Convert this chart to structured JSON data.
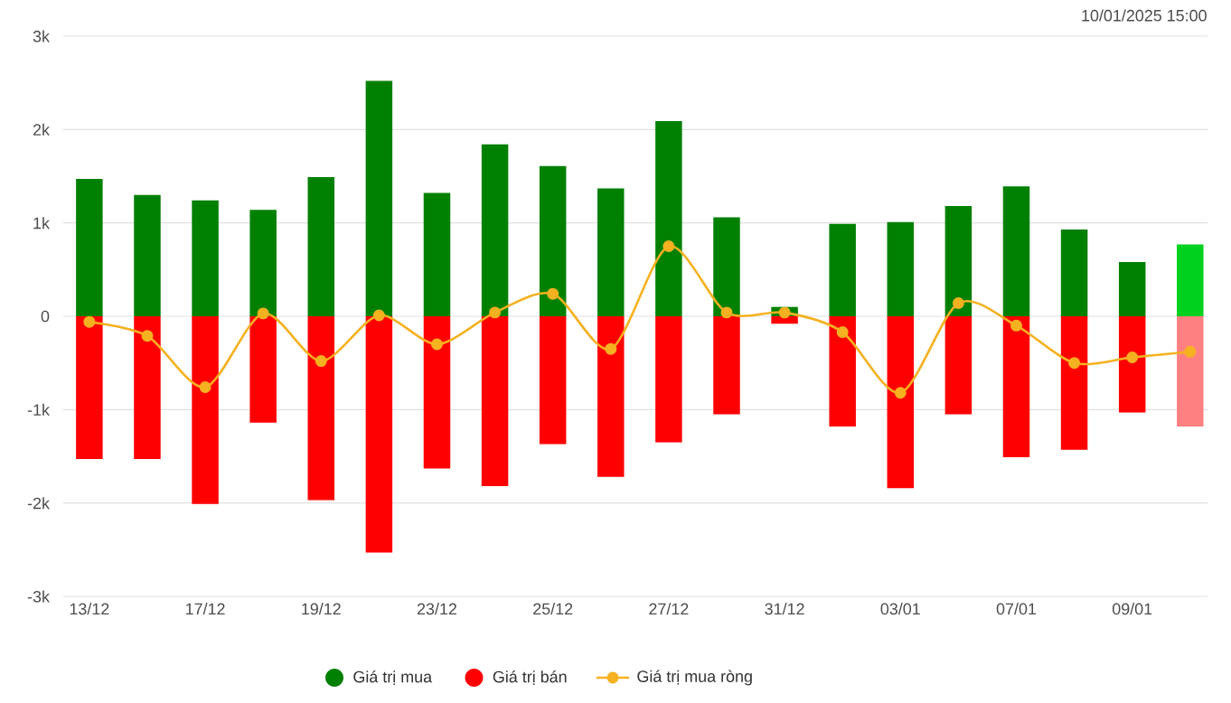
{
  "chart_data": {
    "type": "bar",
    "stacked": true,
    "categories": [
      "13/12",
      null,
      "17/12",
      null,
      "19/12",
      null,
      "23/12",
      null,
      "25/12",
      null,
      "27/12",
      null,
      "31/12",
      null,
      "03/01",
      null,
      "07/01",
      null,
      "09/01",
      null
    ],
    "series": [
      {
        "name": "Giá trị mua",
        "color": "#008000",
        "colors": [
          "#008000",
          "#008000",
          "#008000",
          "#008000",
          "#008000",
          "#008000",
          "#008000",
          "#008000",
          "#008000",
          "#008000",
          "#008000",
          "#008000",
          "#008000",
          "#008000",
          "#008000",
          "#008000",
          "#008000",
          "#008000",
          "#008000",
          "#00d11f"
        ],
        "values": [
          1470,
          1300,
          1240,
          1140,
          1490,
          2520,
          1320,
          1840,
          1610,
          1370,
          2090,
          1060,
          100,
          990,
          1010,
          1180,
          1390,
          930,
          580,
          770
        ]
      },
      {
        "name": "Giá trị bán",
        "color": "#ff0000",
        "colors": [
          "#ff0000",
          "#ff0000",
          "#ff0000",
          "#ff0000",
          "#ff0000",
          "#ff0000",
          "#ff0000",
          "#ff0000",
          "#ff0000",
          "#ff0000",
          "#ff0000",
          "#ff0000",
          "#ff0000",
          "#ff0000",
          "#ff0000",
          "#ff0000",
          "#ff0000",
          "#ff0000",
          "#ff0000",
          "#ff8080"
        ],
        "values": [
          -1530,
          -1530,
          -2010,
          -1140,
          -1970,
          -2530,
          -1630,
          -1820,
          -1370,
          -1720,
          -1350,
          -1050,
          -80,
          -1180,
          -1840,
          -1050,
          -1510,
          -1430,
          -1030,
          -1180
        ]
      },
      {
        "name": "Giá trị mua ròng",
        "type": "line",
        "color": "#f5b120",
        "values": [
          -60,
          -210,
          -760,
          30,
          -480,
          10,
          -300,
          40,
          240,
          -350,
          750,
          40,
          40,
          -170,
          -820,
          140,
          -100,
          -500,
          -440,
          -380
        ]
      }
    ],
    "ylim": [
      -3000,
      3000
    ],
    "yticks": [
      {
        "value": -3000,
        "label": "-3k"
      },
      {
        "value": -2000,
        "label": "-2k"
      },
      {
        "value": -1000,
        "label": "-1k"
      },
      0,
      {
        "value": 1000,
        "label": "1k"
      },
      {
        "value": 2000,
        "label": "2k"
      },
      {
        "value": 3000,
        "label": "3k"
      }
    ],
    "grid": "y",
    "legend": "bottom",
    "marker": "circle",
    "line_style": "solid",
    "annotations": [
      "10/01/2025 15:00"
    ]
  }
}
